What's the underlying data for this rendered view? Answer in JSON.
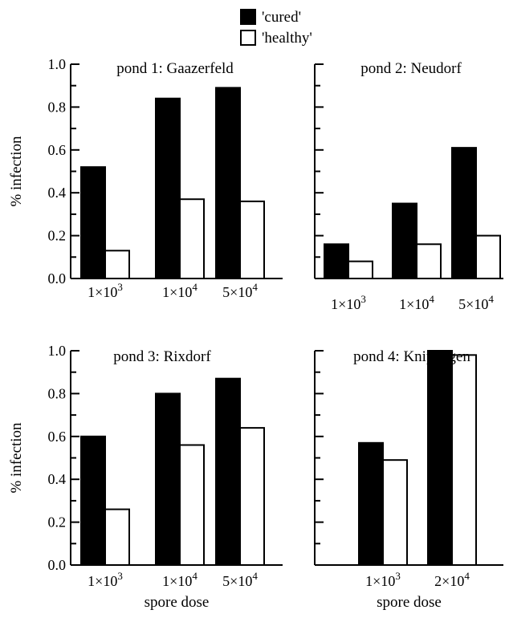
{
  "legend": [
    {
      "label": "'cured'",
      "color": "#000000"
    },
    {
      "label": "'healthy'",
      "color": "#ffffff"
    }
  ],
  "chart_data": [
    {
      "type": "bar",
      "title": "pond 1: Gaazerfeld",
      "ylabel": "% infection",
      "xlabel": "",
      "ylim": [
        0,
        1.0
      ],
      "yticks": [
        "0.0",
        "0.2",
        "0.4",
        "0.6",
        "0.8",
        "1.0"
      ],
      "categories": [
        {
          "base": "1×10",
          "exp": "3"
        },
        {
          "base": "1×10",
          "exp": "4"
        },
        {
          "base": "5×10",
          "exp": "4"
        }
      ],
      "series": [
        {
          "name": "'cured'",
          "values": [
            0.52,
            0.84,
            0.89
          ]
        },
        {
          "name": "'healthy'",
          "values": [
            0.13,
            0.37,
            0.36
          ]
        }
      ]
    },
    {
      "type": "bar",
      "title": "pond 2: Neudorf",
      "ylabel": "",
      "xlabel": "",
      "ylim": [
        0,
        1.0
      ],
      "yticks": [],
      "categories": [
        {
          "base": "1×10",
          "exp": "3"
        },
        {
          "base": "1×10",
          "exp": "4"
        },
        {
          "base": "5×10",
          "exp": "4"
        }
      ],
      "series": [
        {
          "name": "'cured'",
          "values": [
            0.16,
            0.35,
            0.61
          ]
        },
        {
          "name": "'healthy'",
          "values": [
            0.08,
            0.16,
            0.2
          ]
        }
      ]
    },
    {
      "type": "bar",
      "title": "pond 3: Rixdorf",
      "ylabel": "% infection",
      "xlabel": "spore dose",
      "ylim": [
        0,
        1.0
      ],
      "yticks": [
        "0.0",
        "0.2",
        "0.4",
        "0.6",
        "0.8",
        "1.0"
      ],
      "categories": [
        {
          "base": "1×10",
          "exp": "3"
        },
        {
          "base": "1×10",
          "exp": "4"
        },
        {
          "base": "5×10",
          "exp": "4"
        }
      ],
      "series": [
        {
          "name": "'cured'",
          "values": [
            0.6,
            0.8,
            0.87
          ]
        },
        {
          "name": "'healthy'",
          "values": [
            0.26,
            0.56,
            0.64
          ]
        }
      ]
    },
    {
      "type": "bar",
      "title": "pond 4: Kniphagen",
      "ylabel": "",
      "xlabel": "spore dose",
      "ylim": [
        0,
        1.0
      ],
      "yticks": [],
      "categories": [
        {
          "base": "1×10",
          "exp": "3"
        },
        {
          "base": "2×10",
          "exp": "4"
        }
      ],
      "series": [
        {
          "name": "'cured'",
          "values": [
            0.57,
            1.0
          ]
        },
        {
          "name": "'healthy'",
          "values": [
            0.49,
            0.98
          ]
        }
      ]
    }
  ]
}
